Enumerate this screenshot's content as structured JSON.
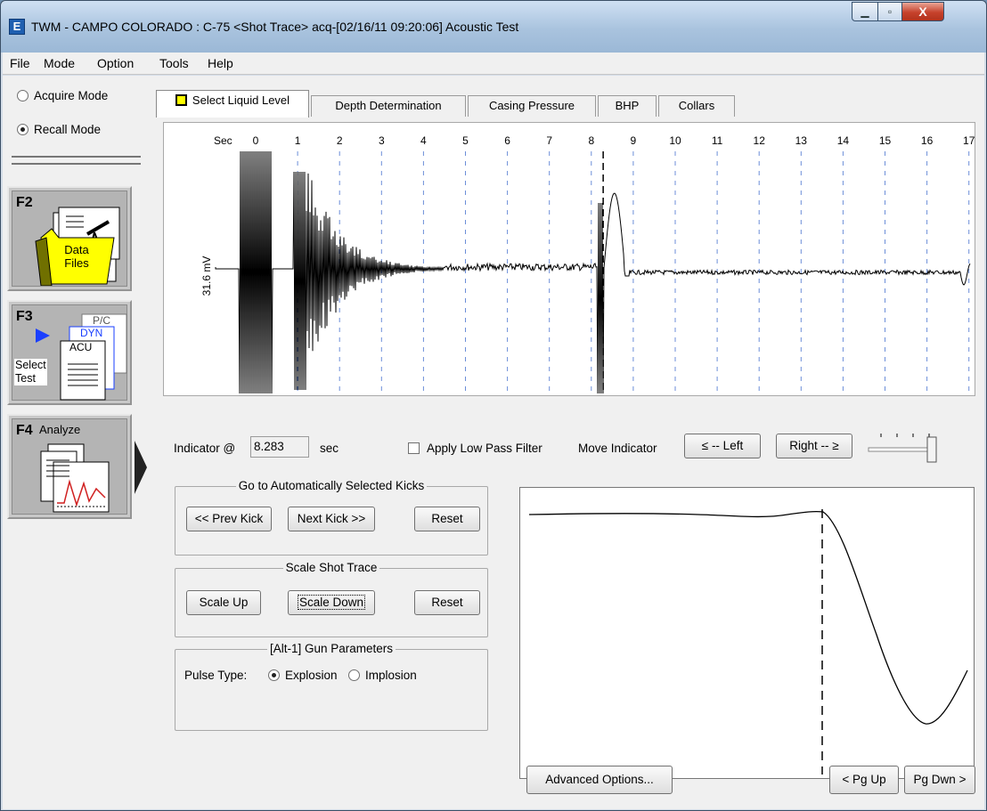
{
  "window": {
    "app_icon": "E",
    "title": "TWM  -  CAMPO COLORADO : C-75  <Shot Trace>  acq-[02/16/11 09:20:06]  Acoustic Test",
    "controls": {
      "minimize": "▁",
      "maximize": "▫",
      "close": "X"
    }
  },
  "menu": [
    "File",
    "Mode",
    "Option",
    "Tools",
    "Help"
  ],
  "left_panel": {
    "modes": [
      {
        "label": "Acquire Mode",
        "selected": false
      },
      {
        "label": "Recall Mode",
        "selected": true
      }
    ],
    "function_keys": [
      {
        "key": "F2",
        "label_lines": [
          "Data",
          "Files"
        ]
      },
      {
        "key": "F3",
        "label_lines": [
          "Select",
          "Test"
        ],
        "tags": [
          "P/C",
          "DYN",
          "ACU"
        ]
      },
      {
        "key": "F4",
        "label_lines": [
          "Analyze"
        ]
      }
    ]
  },
  "tabs": [
    {
      "label": "Select Liquid Level",
      "active": true
    },
    {
      "label": "Depth Determination",
      "active": false
    },
    {
      "label": "Casing Pressure",
      "active": false
    },
    {
      "label": "BHP",
      "active": false
    },
    {
      "label": "Collars",
      "active": false
    }
  ],
  "shot_trace": {
    "x_unit_label": "Sec",
    "x_ticks": [
      "0",
      "1",
      "2",
      "3",
      "4",
      "5",
      "6",
      "7",
      "8",
      "9",
      "10",
      "11",
      "12",
      "13",
      "14",
      "15",
      "16",
      "17"
    ],
    "y_label": "31.6 mV",
    "indicator_sec": 8.283
  },
  "controls": {
    "indicator_label": "Indicator @",
    "indicator_value": "8.283",
    "indicator_unit": "sec",
    "low_pass_filter_label": "Apply Low Pass Filter",
    "low_pass_filter_checked": false,
    "move_indicator_label": "Move Indicator",
    "left_button": "≤ -- Left",
    "right_button": "Right -- ≥"
  },
  "kicks_group": {
    "title": "Go to Automatically Selected Kicks",
    "prev": "<< Prev Kick",
    "next": "Next Kick >>",
    "reset": "Reset"
  },
  "scale_group": {
    "title": "Scale Shot Trace",
    "up": "Scale Up",
    "down": "Scale Down",
    "reset": "Reset"
  },
  "gun_group": {
    "title": "[Alt-1]  Gun Parameters",
    "pulse_label": "Pulse Type:",
    "options": [
      {
        "label": "Explosion",
        "selected": true
      },
      {
        "label": "Implosion",
        "selected": false
      }
    ]
  },
  "bottom": {
    "advanced": "Advanced Options...",
    "pg_up": "< Pg Up",
    "pg_down": "Pg Dwn >"
  },
  "colors": {
    "tab_marker": "#ffff00",
    "data_files_folder": "#ffff00",
    "dyn_accent": "#1a3fff"
  }
}
